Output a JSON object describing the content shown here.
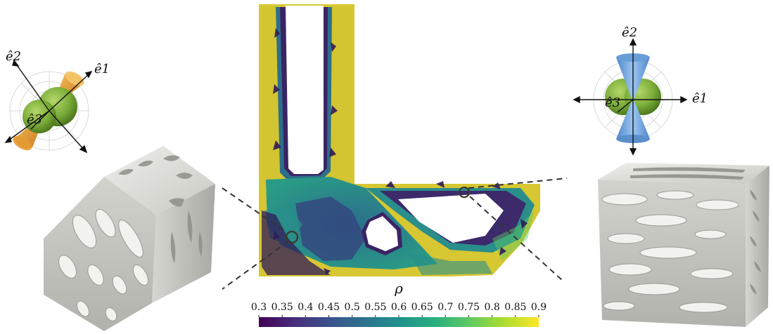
{
  "colorbar": {
    "symbol": "ρ",
    "ticks": [
      "0.3",
      "0.35",
      "0.4",
      "0.45",
      "0.5",
      "0.55",
      "0.6",
      "0.65",
      "0.7",
      "0.75",
      "0.8",
      "0.85",
      "0.9"
    ],
    "range": [
      0.3,
      0.9
    ],
    "colors": [
      "#440154",
      "#472d7b",
      "#3b528b",
      "#2c728e",
      "#21918c",
      "#28ae80",
      "#5ec962",
      "#addc30",
      "#fde725"
    ]
  },
  "left_glyph": {
    "axis_1": "ê1",
    "axis_2": "ê2",
    "axis_3": "ê3",
    "cone_color": "#e8a13a",
    "sphere_color": "#7cae3a"
  },
  "right_glyph": {
    "axis_1": "ê1",
    "axis_2": "ê2",
    "axis_3": "ê3",
    "cone_color": "#6fa8e6",
    "sphere_color": "#7cae3a"
  },
  "domain_colors": {
    "high": "#d7c732",
    "mid": "#2a8a8c",
    "low": "#2f1b58",
    "void": "#ffffff"
  }
}
